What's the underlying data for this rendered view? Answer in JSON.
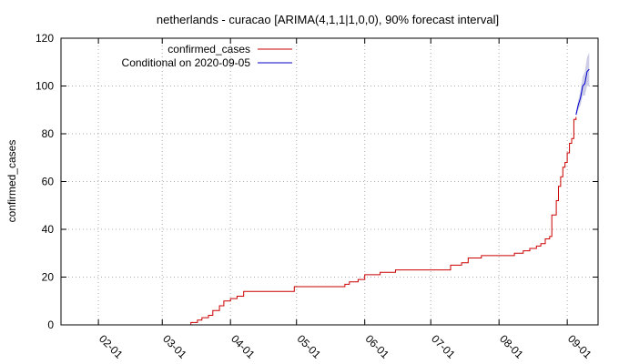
{
  "chart_data": {
    "type": "line",
    "title": "netherlands - curacao [ARIMA(4,1,1|1,0,0), 90% forecast interval]",
    "xlabel": "",
    "ylabel": "confirmed_cases",
    "ylim": [
      0,
      120
    ],
    "y_ticks": [
      "0",
      "20",
      "40",
      "60",
      "80",
      "100",
      "120"
    ],
    "y_tick_values": [
      0,
      20,
      40,
      60,
      80,
      100,
      120
    ],
    "x_ticks": [
      "02-01",
      "03-01",
      "04-01",
      "05-01",
      "06-01",
      "07-01",
      "08-01",
      "09-01"
    ],
    "x_tick_dates": [
      "2020-02-01",
      "2020-03-01",
      "2020-04-01",
      "2020-05-01",
      "2020-06-01",
      "2020-07-01",
      "2020-08-01",
      "2020-09-01"
    ],
    "xlim": [
      "2020-01-15",
      "2020-09-15"
    ],
    "grid": true,
    "legend_position": "top-left",
    "series": [
      {
        "name": "confirmed_cases",
        "color": "#cc0000",
        "points": [
          [
            "2020-03-13",
            0
          ],
          [
            "2020-03-14",
            1
          ],
          [
            "2020-03-17",
            2
          ],
          [
            "2020-03-19",
            3
          ],
          [
            "2020-03-22",
            4
          ],
          [
            "2020-03-24",
            6
          ],
          [
            "2020-03-27",
            8
          ],
          [
            "2020-03-29",
            10
          ],
          [
            "2020-04-01",
            11
          ],
          [
            "2020-04-04",
            12
          ],
          [
            "2020-04-07",
            14
          ],
          [
            "2020-04-30",
            16
          ],
          [
            "2020-05-20",
            16
          ],
          [
            "2020-05-23",
            17
          ],
          [
            "2020-05-25",
            18
          ],
          [
            "2020-05-29",
            19
          ],
          [
            "2020-06-01",
            21
          ],
          [
            "2020-06-08",
            22
          ],
          [
            "2020-06-15",
            23
          ],
          [
            "2020-07-08",
            23
          ],
          [
            "2020-07-10",
            25
          ],
          [
            "2020-07-15",
            26
          ],
          [
            "2020-07-18",
            28
          ],
          [
            "2020-07-24",
            29
          ],
          [
            "2020-08-05",
            29
          ],
          [
            "2020-08-08",
            30
          ],
          [
            "2020-08-12",
            31
          ],
          [
            "2020-08-15",
            32
          ],
          [
            "2020-08-18",
            33
          ],
          [
            "2020-08-20",
            34
          ],
          [
            "2020-08-22",
            36
          ],
          [
            "2020-08-24",
            37
          ],
          [
            "2020-08-25",
            46
          ],
          [
            "2020-08-27",
            52
          ],
          [
            "2020-08-28",
            58
          ],
          [
            "2020-08-29",
            62
          ],
          [
            "2020-08-30",
            66
          ],
          [
            "2020-08-31",
            68
          ],
          [
            "2020-09-01",
            72
          ],
          [
            "2020-09-02",
            76
          ],
          [
            "2020-09-03",
            78
          ],
          [
            "2020-09-04",
            86
          ],
          [
            "2020-09-05",
            87
          ]
        ]
      },
      {
        "name": "Conditional on 2020-09-05",
        "color": "#0000cc",
        "band_color": "#c8c8e6",
        "points": [
          [
            "2020-09-05",
            88
          ],
          [
            "2020-09-06",
            92
          ],
          [
            "2020-09-07",
            95
          ],
          [
            "2020-09-08",
            100
          ],
          [
            "2020-09-09",
            101
          ],
          [
            "2020-09-10",
            106
          ],
          [
            "2020-09-11",
            107
          ]
        ],
        "lower": [
          87,
          90,
          92,
          96,
          96,
          100,
          100
        ],
        "upper": [
          89,
          94,
          98,
          104,
          106,
          112,
          114
        ]
      }
    ]
  }
}
